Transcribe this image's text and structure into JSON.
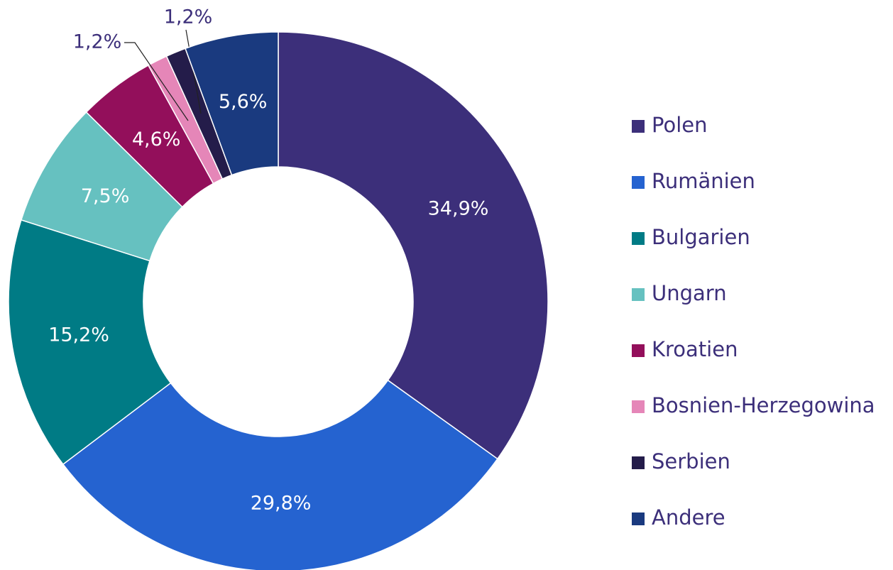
{
  "chart_data": {
    "type": "pie",
    "categories": [
      "Polen",
      "Rumänien",
      "Bulgarien",
      "Ungarn",
      "Kroatien",
      "Bosnien-Herzegowina",
      "Serbien",
      "Andere"
    ],
    "values": [
      34.9,
      29.8,
      15.2,
      7.5,
      4.6,
      1.2,
      1.2,
      5.6
    ],
    "value_labels": [
      "34,9%",
      "29,8%",
      "15,2%",
      "7,5%",
      "4,6%",
      "1,2%",
      "1,2%",
      "5,6%"
    ],
    "colors": [
      "#3c2f7a",
      "#2563d0",
      "#007b85",
      "#66c1c0",
      "#930f5b",
      "#e586b8",
      "#241c4a",
      "#1a3a7f"
    ],
    "legend": "right"
  }
}
